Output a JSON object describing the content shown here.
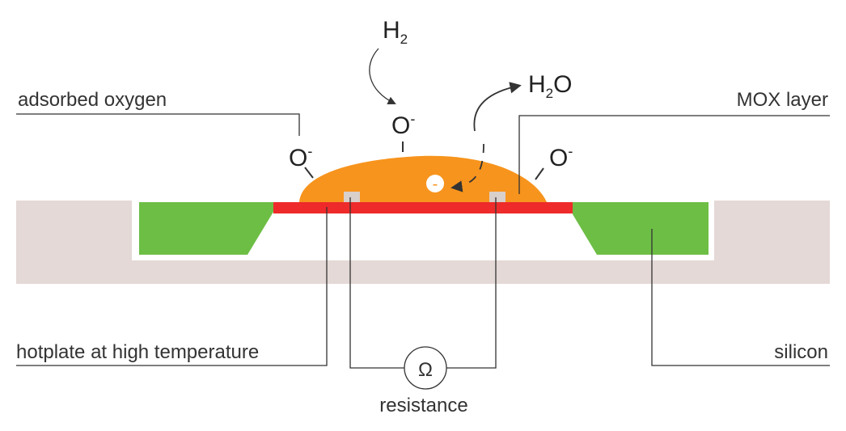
{
  "labels": {
    "adsorbed_oxygen": "adsorbed oxygen",
    "mox_layer": "MOX layer",
    "hotplate": "hotplate at high temperature",
    "silicon": "silicon",
    "resistance": "resistance"
  },
  "molecules": {
    "h2": {
      "base": "H",
      "sub": "2"
    },
    "h2o": {
      "base": "H",
      "sub": "2",
      "tail": "O"
    },
    "oxygen_ion": {
      "base": "O",
      "sup": "-"
    }
  },
  "electron": {
    "sign": "-"
  },
  "ohm_symbol": "Ω",
  "colors": {
    "substrate": "#e4d9d6",
    "silicon": "#6dbe45",
    "hotplate": "#ee2a2a",
    "mox": "#f7941d",
    "electrode": "#d9cfcb",
    "line": "#333333"
  }
}
